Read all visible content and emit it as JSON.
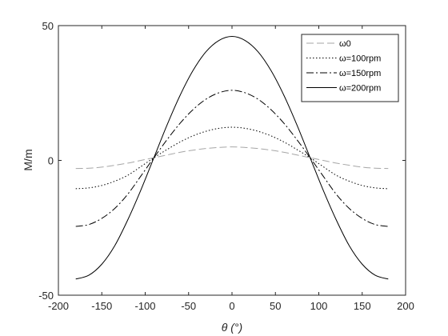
{
  "chart_data": {
    "type": "line",
    "xlabel": "θ (°)",
    "ylabel": "M/m",
    "xlim": [
      -200,
      200
    ],
    "ylim": [
      -50,
      50
    ],
    "xticks": [
      -200,
      -150,
      -100,
      -50,
      0,
      50,
      100,
      150,
      200
    ],
    "yticks": [
      -50,
      0,
      50
    ],
    "grid": false,
    "legend_position": "top-right",
    "x": [
      -180,
      -165,
      -150,
      -135,
      -120,
      -105,
      -90,
      -75,
      -60,
      -45,
      -30,
      -15,
      0,
      15,
      30,
      45,
      60,
      75,
      90,
      105,
      120,
      135,
      150,
      165,
      180
    ],
    "series": [
      {
        "name": "ω0",
        "color": "#a6a6a6",
        "dash": "dashed",
        "values": [
          -3.0,
          -2.9,
          -2.5,
          -1.8,
          -1.0,
          0.0,
          1.0,
          2.0,
          3.0,
          3.8,
          4.4,
          4.8,
          5.0,
          4.8,
          4.4,
          3.8,
          3.0,
          2.0,
          1.0,
          0.0,
          -1.0,
          -1.8,
          -2.5,
          -2.9,
          -3.0
        ]
      },
      {
        "name": "ω=100rpm",
        "color": "#000000",
        "dash": "dotted",
        "values": [
          -10.5,
          -10.2,
          -9.3,
          -7.7,
          -5.5,
          -2.3,
          1.0,
          4.0,
          6.8,
          9.1,
          10.8,
          11.9,
          12.3,
          11.9,
          10.8,
          9.1,
          6.8,
          4.0,
          1.0,
          -2.3,
          -5.5,
          -7.7,
          -9.3,
          -10.2,
          -10.5
        ]
      },
      {
        "name": "ω=150rpm",
        "color": "#000000",
        "dash": "dashdot",
        "values": [
          -24.5,
          -23.8,
          -21.5,
          -17.8,
          -12.5,
          -5.8,
          1.0,
          7.6,
          13.7,
          18.8,
          22.7,
          25.1,
          26.0,
          25.1,
          22.7,
          18.8,
          13.7,
          7.6,
          1.0,
          -5.8,
          -12.5,
          -17.8,
          -21.5,
          -23.8,
          -24.5
        ]
      },
      {
        "name": "ω=200rpm",
        "color": "#000000",
        "dash": "solid",
        "values": [
          -44.0,
          -42.6,
          -38.5,
          -31.6,
          -22.0,
          -11.0,
          1.0,
          13.0,
          24.0,
          33.3,
          40.3,
          44.5,
          46.0,
          44.5,
          40.3,
          33.3,
          24.0,
          13.0,
          1.0,
          -11.0,
          -22.0,
          -31.6,
          -38.5,
          -42.6,
          -44.0
        ]
      }
    ]
  }
}
